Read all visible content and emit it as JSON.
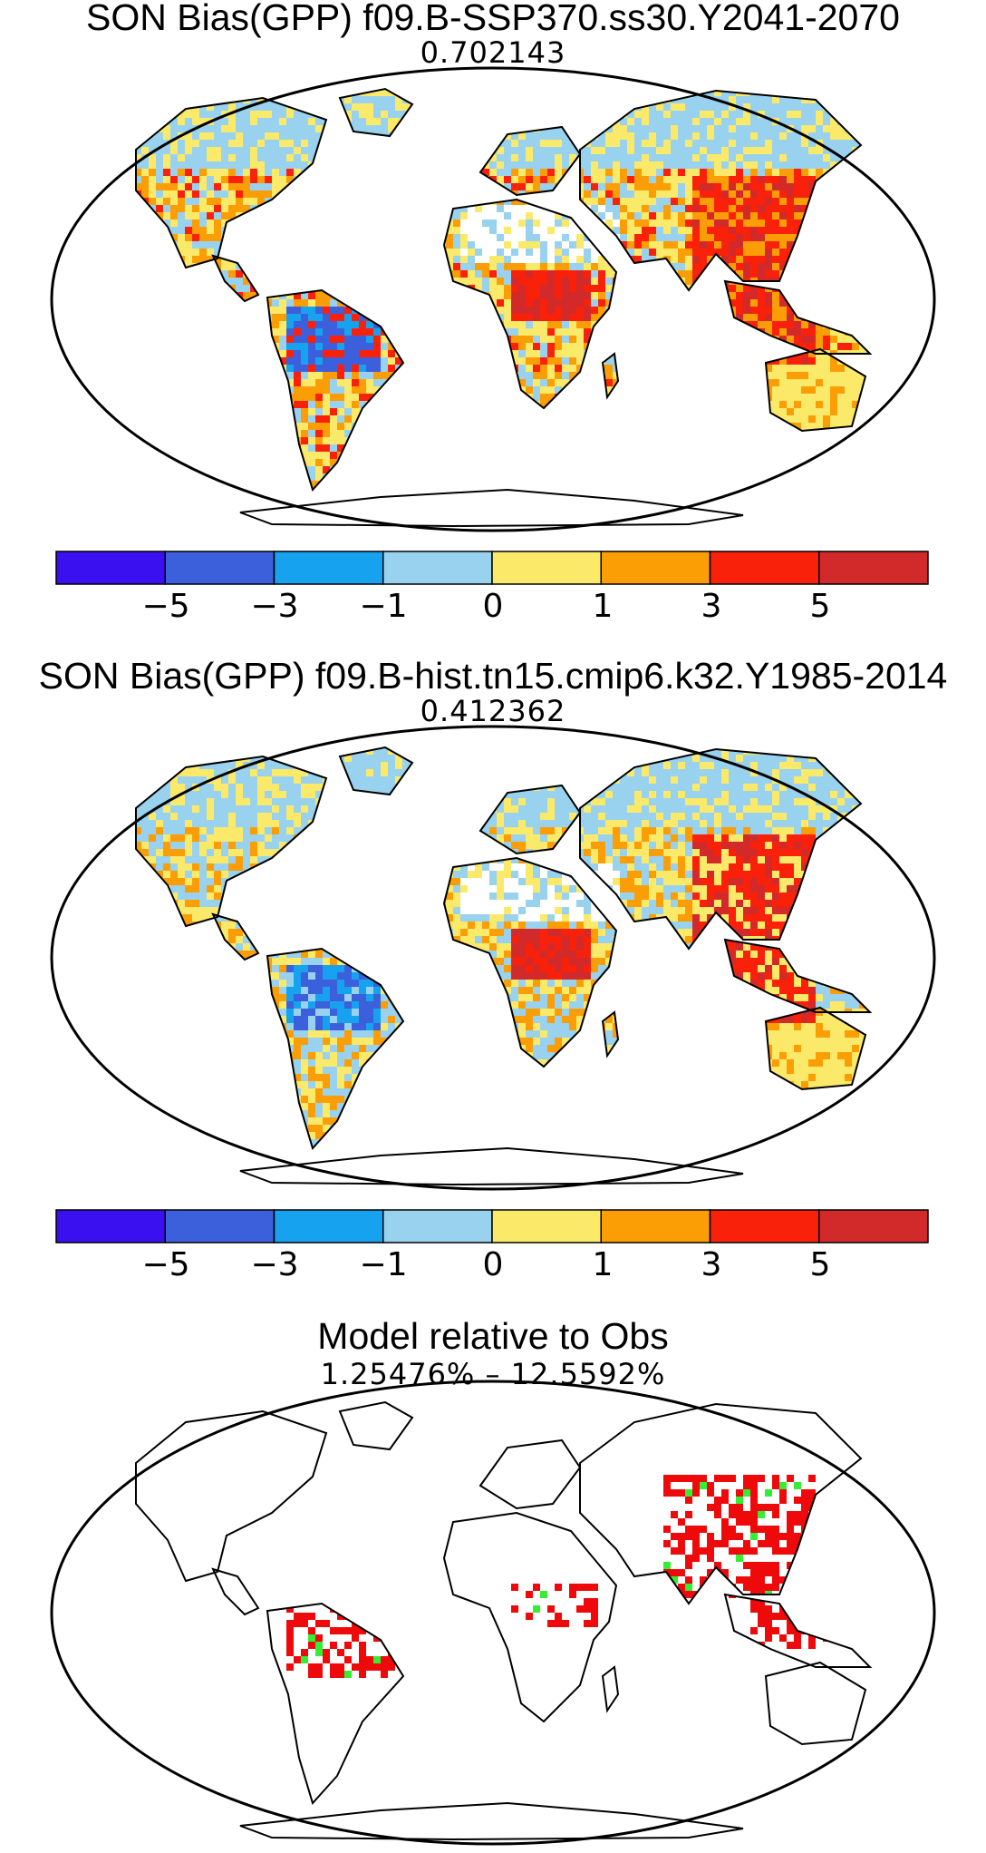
{
  "panels": [
    {
      "title": "SON Bias(GPP) f09.B-SSP370.ss30.Y2041-2070",
      "subtitle": "0.702143"
    },
    {
      "title": "SON Bias(GPP) f09.B-hist.tn15.cmip6.k32.Y1985-2014",
      "subtitle": "0.412362"
    },
    {
      "title": "Model relative to Obs",
      "subtitle": "1.25476% – 12.5592%"
    }
  ],
  "colorbar": {
    "colors": [
      "#3a10f0",
      "#3c60dc",
      "#16a2ef",
      "#99d2ef",
      "#fbe96a",
      "#fb9e06",
      "#fa210b",
      "#d22a2a"
    ],
    "ticks": [
      "−5",
      "−3",
      "−1",
      "0",
      "1",
      "3",
      "5"
    ]
  },
  "legend_colors": {
    "model_better": "#ee0a0a",
    "obs_better": "#33ee33"
  }
}
